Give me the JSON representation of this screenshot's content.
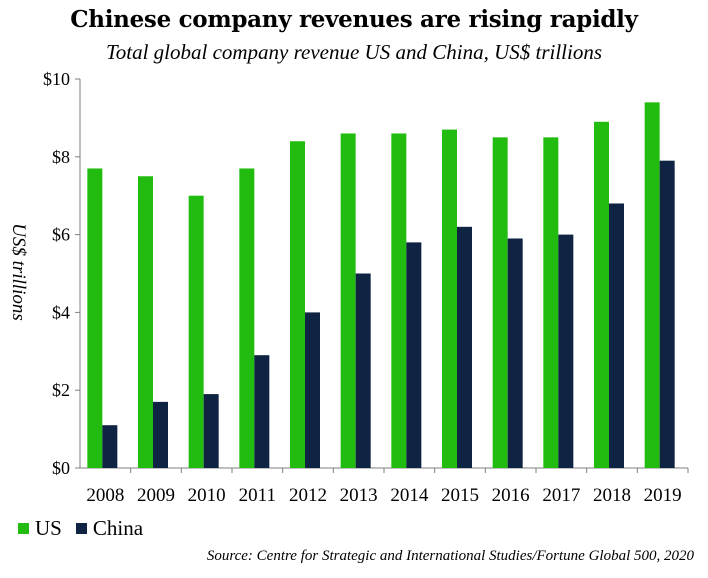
{
  "chart_data": {
    "type": "bar",
    "title": "Chinese company revenues are rising rapidly",
    "subtitle": "Total global company revenue US and China, US$ trillions",
    "ylabel": "US$ trillions",
    "xlabel": "",
    "ylim": [
      0,
      10
    ],
    "yticks": [
      0,
      2,
      4,
      6,
      8,
      10
    ],
    "ytick_labels": [
      "$0",
      "$2",
      "$4",
      "$6",
      "$8",
      "$10"
    ],
    "categories": [
      "2008",
      "2009",
      "2010",
      "2011",
      "2012",
      "2013",
      "2014",
      "2015",
      "2016",
      "2017",
      "2018",
      "2019"
    ],
    "series": [
      {
        "name": "US",
        "color": "#22bb0f",
        "values": [
          7.7,
          7.5,
          7.0,
          7.7,
          8.4,
          8.6,
          8.6,
          8.7,
          8.5,
          8.5,
          8.9,
          9.4
        ]
      },
      {
        "name": "China",
        "color": "#0f2342",
        "values": [
          1.1,
          1.7,
          1.9,
          2.9,
          4.0,
          5.0,
          5.8,
          6.2,
          5.9,
          6.0,
          6.8,
          7.9
        ]
      }
    ],
    "grid": false,
    "legend_position": "bottom-left",
    "source": "Source: Centre for Strategic and International Studies/Fortune Global 500, 2020"
  }
}
